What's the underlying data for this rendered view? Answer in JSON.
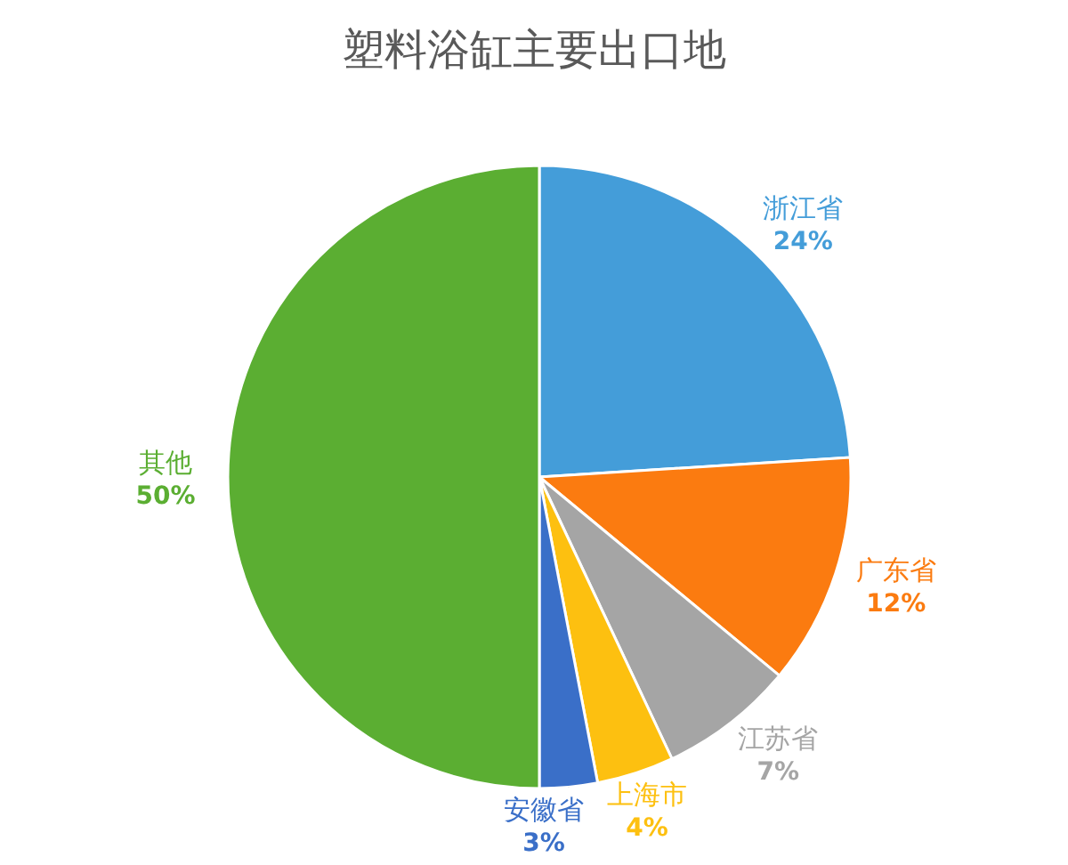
{
  "chart_data": {
    "type": "pie",
    "title": "塑料浴缸主要出口地",
    "categories": [
      "浙江省",
      "广东省",
      "江苏省",
      "上海市",
      "安徽省",
      "其他"
    ],
    "values": [
      24,
      12,
      7,
      4,
      3,
      50
    ],
    "colors": [
      "#449dd9",
      "#fb7b10",
      "#a5a5a5",
      "#fdc010",
      "#3a6fc8",
      "#5bae32"
    ],
    "value_labels": [
      "24%",
      "12%",
      "7%",
      "4%",
      "3%",
      "50%"
    ]
  }
}
